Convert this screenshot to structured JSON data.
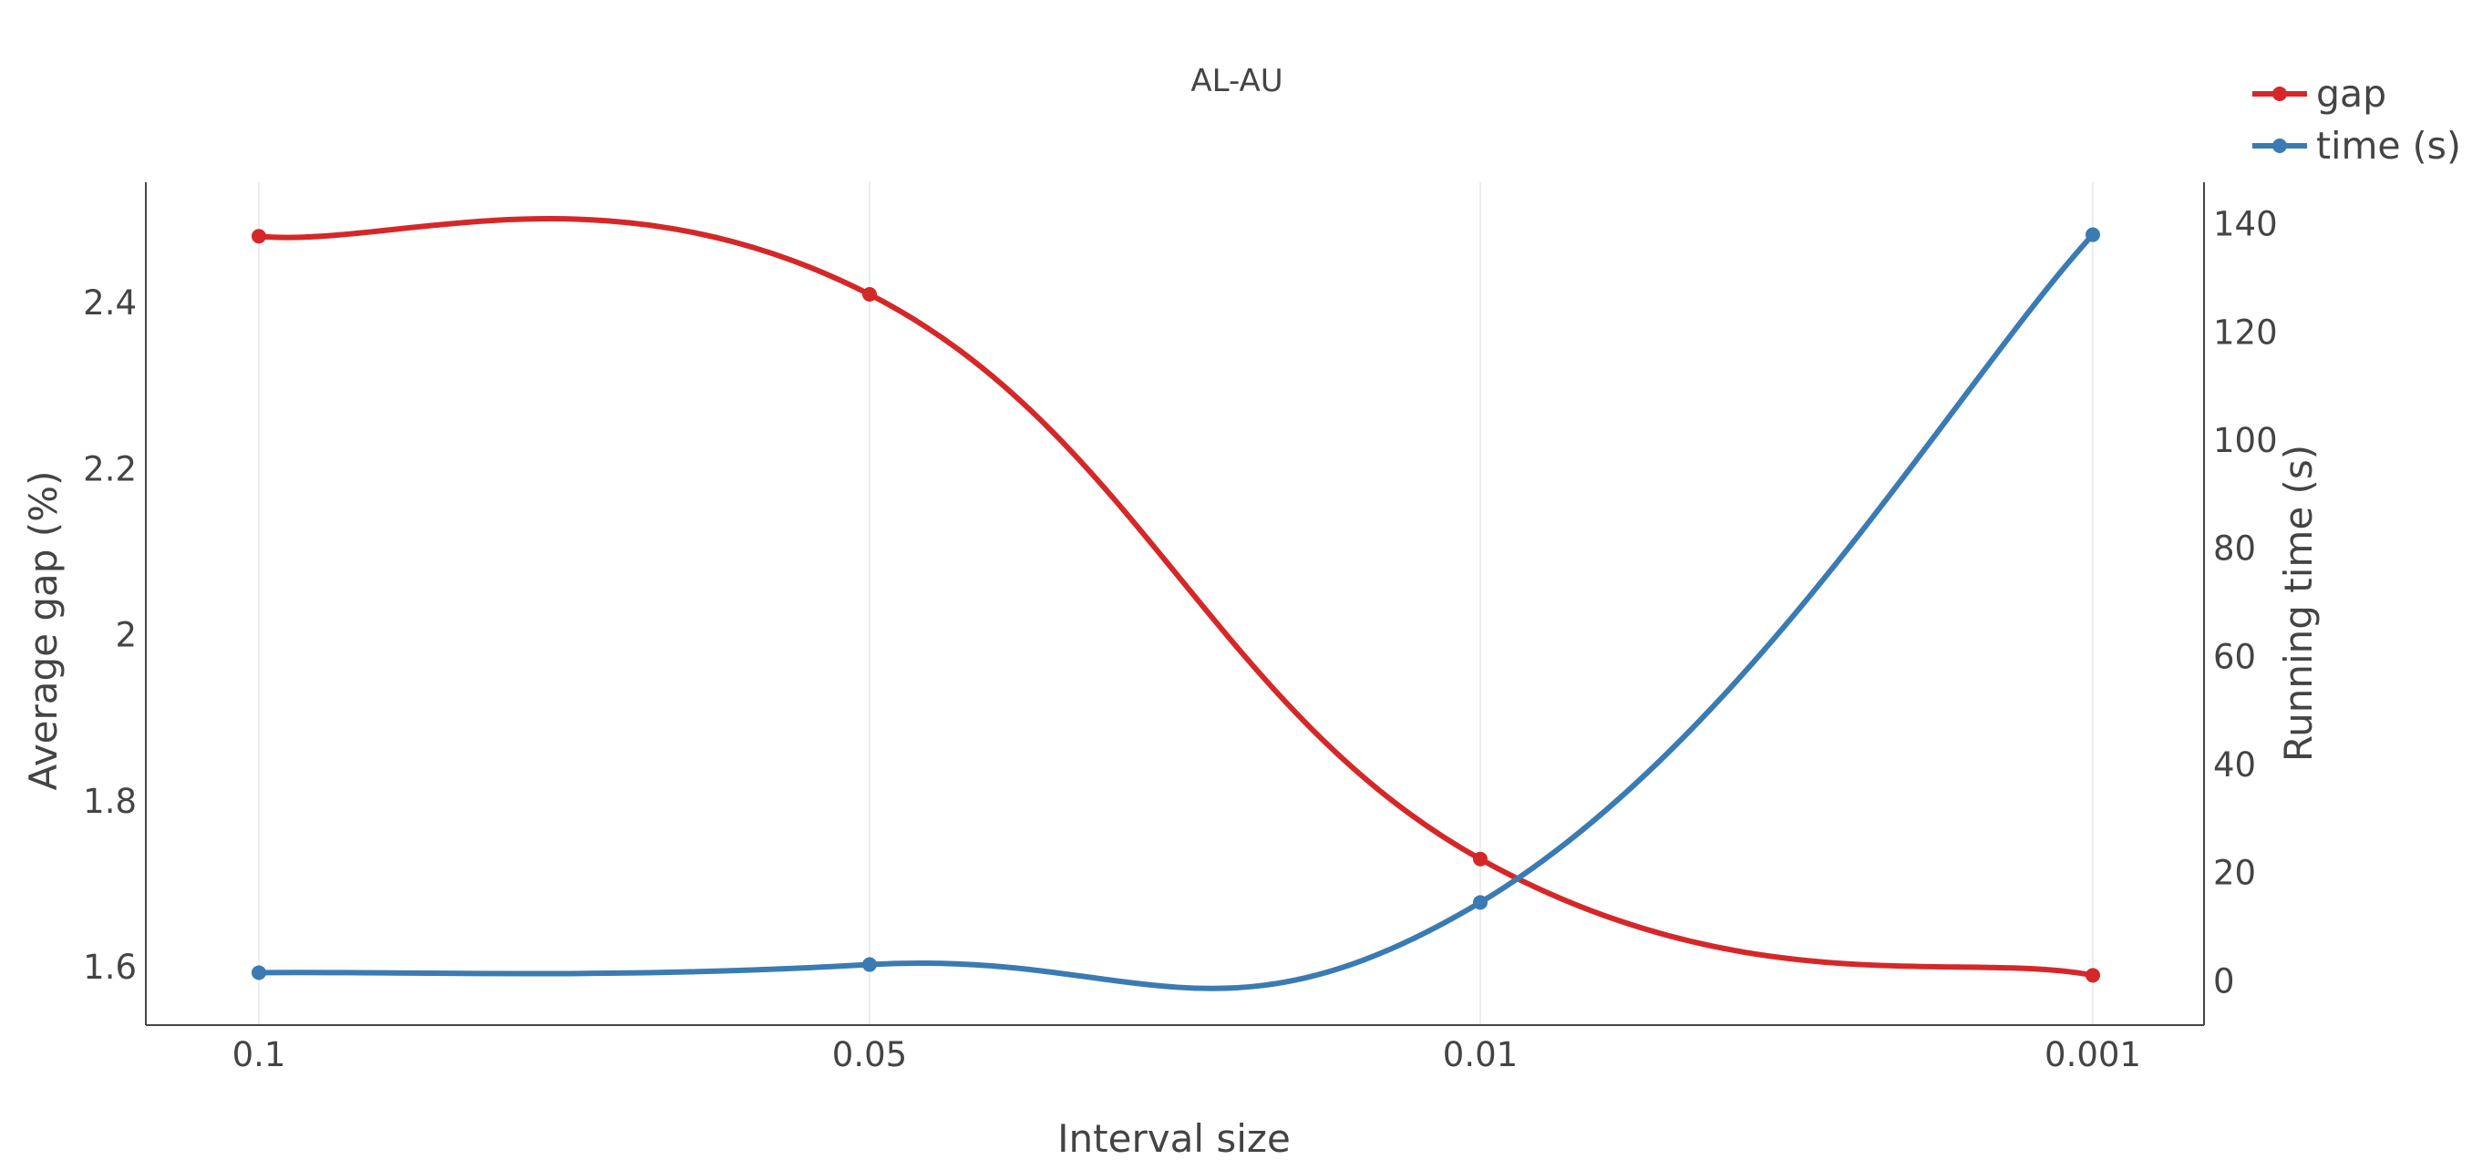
{
  "chart_data": {
    "type": "line",
    "title": "AL-AU",
    "xlabel": "Interval size",
    "ylabel": "Average gap (%)",
    "y2label": "Running time (s)",
    "categories": [
      "0.1",
      "0.05",
      "0.01",
      "0.001"
    ],
    "series": [
      {
        "name": "gap",
        "axis": "left",
        "color": "#d62728",
        "values": [
          2.48,
          2.41,
          1.73,
          1.59
        ]
      },
      {
        "name": "time (s)",
        "axis": "right",
        "color": "#3a7bb3",
        "values": [
          1.5,
          3,
          14.5,
          138
        ]
      }
    ],
    "yticks": [
      "1.6",
      "1.8",
      "2",
      "2.2",
      "2.4"
    ],
    "y2ticks": [
      "0",
      "20",
      "40",
      "60",
      "80",
      "100",
      "120",
      "140"
    ],
    "ylim": [
      1.53,
      2.545
    ],
    "y2lim": [
      -8.2,
      147.7
    ],
    "grid": "vertical",
    "legend_position": "top-right"
  }
}
